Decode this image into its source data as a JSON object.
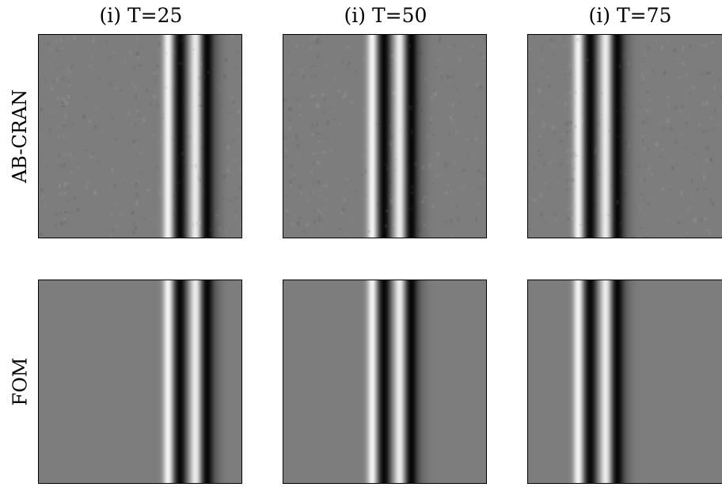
{
  "columns": [
    {
      "title": "(i) T=25",
      "wave_center": 0.75
    },
    {
      "title": "(i) T=50",
      "wave_center": 0.55
    },
    {
      "title": "(i) T=75",
      "wave_center": 0.36
    }
  ],
  "rows": [
    {
      "label": "AB-CRAN",
      "noise": true
    },
    {
      "label": "FOM",
      "noise": false
    }
  ],
  "colors": {
    "background_gray": "#7d7d7d",
    "bright": "#f7f7f7",
    "dark": "#0a0a0a",
    "frame": "#000000"
  }
}
